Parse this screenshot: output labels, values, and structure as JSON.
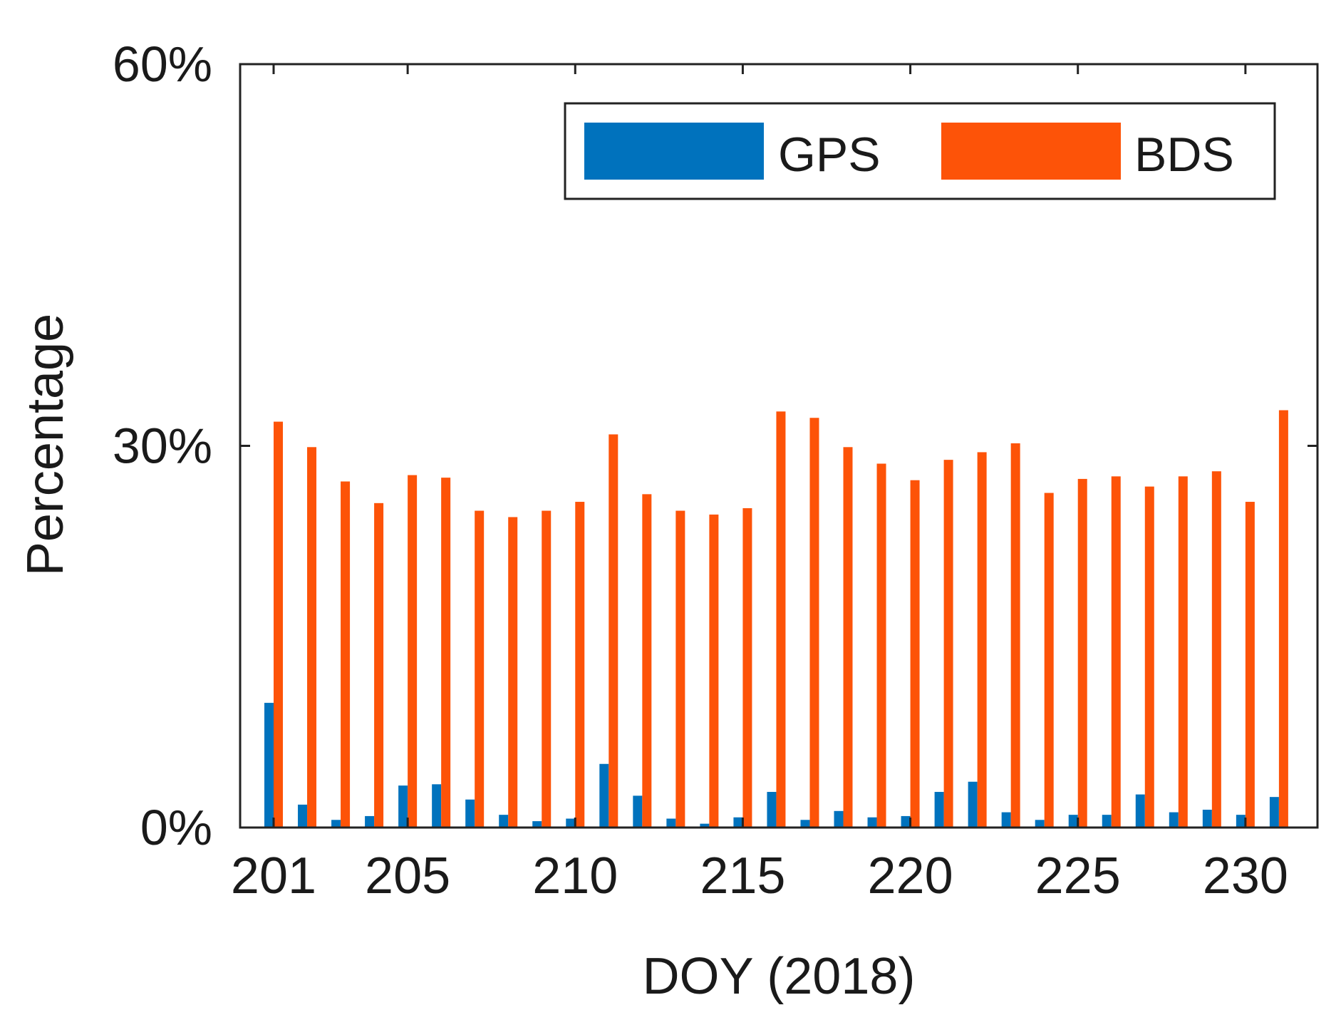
{
  "chart_data": {
    "type": "bar",
    "title": "",
    "xlabel": "DOY (2018)",
    "ylabel": "Percentage",
    "ylim": [
      0,
      60
    ],
    "y_ticks": [
      0,
      30,
      60
    ],
    "y_tick_labels": [
      "0%",
      "30%",
      "60%"
    ],
    "x_ticks": [
      201,
      205,
      210,
      215,
      220,
      225,
      230
    ],
    "x_tick_labels": [
      "201",
      "205",
      "210",
      "215",
      "220",
      "225",
      "230"
    ],
    "categories": [
      201,
      202,
      203,
      204,
      205,
      206,
      207,
      208,
      209,
      210,
      211,
      212,
      213,
      214,
      215,
      216,
      217,
      218,
      219,
      220,
      221,
      222,
      223,
      224,
      225,
      226,
      227,
      228,
      229,
      230,
      231
    ],
    "grid": false,
    "legend_position": "top-right",
    "series": [
      {
        "name": "GPS",
        "color": "#0072BD",
        "values": [
          9.8,
          1.8,
          0.6,
          0.9,
          3.3,
          3.4,
          2.2,
          1.0,
          0.5,
          0.7,
          5.0,
          2.5,
          0.7,
          0.3,
          0.8,
          2.8,
          0.6,
          1.3,
          0.8,
          0.9,
          2.8,
          3.6,
          1.2,
          0.6,
          1.0,
          1.0,
          2.6,
          1.2,
          1.4,
          1.0,
          2.4
        ]
      },
      {
        "name": "BDS",
        "color": "#FD5308",
        "values": [
          31.9,
          29.9,
          27.2,
          25.5,
          27.7,
          27.5,
          24.9,
          24.4,
          24.9,
          25.6,
          30.9,
          26.2,
          24.9,
          24.6,
          25.1,
          32.7,
          32.2,
          29.9,
          28.6,
          27.3,
          28.9,
          29.5,
          30.2,
          26.3,
          27.4,
          27.6,
          26.8,
          27.6,
          28.0,
          25.6,
          32.8
        ]
      }
    ]
  }
}
